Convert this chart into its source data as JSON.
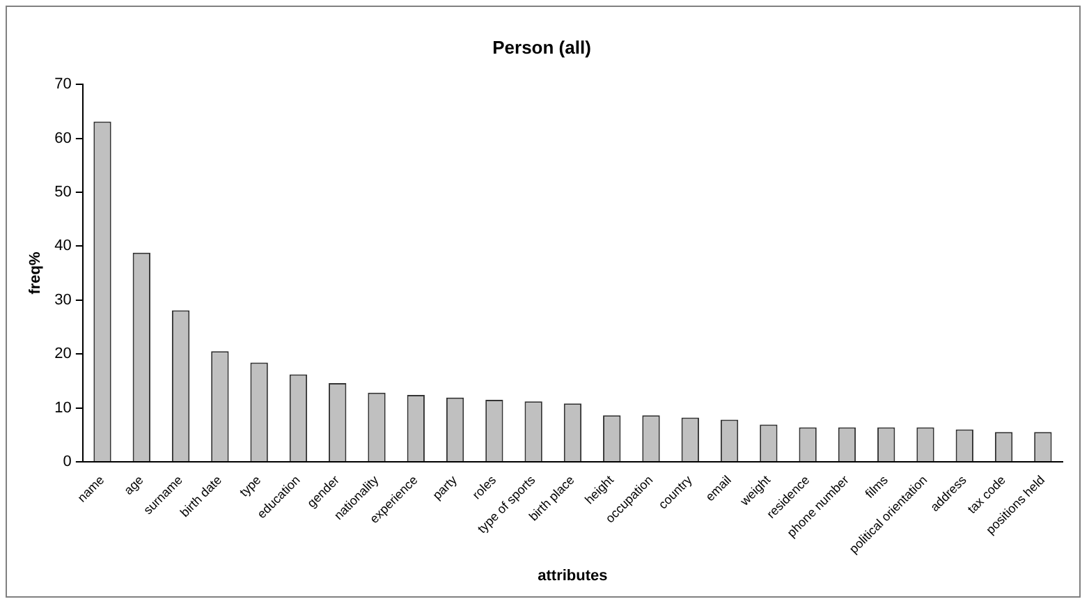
{
  "chart_data": {
    "type": "bar",
    "title": "Person (all)",
    "xlabel": "attributes",
    "ylabel": "freq%",
    "categories": [
      "name",
      "age",
      "surname",
      "birth date",
      "type",
      "education",
      "gender",
      "nationality",
      "experience",
      "party",
      "roles",
      "type of sports",
      "birth place",
      "height",
      "occupation",
      "country",
      "email",
      "weight",
      "residence",
      "phone number",
      "films",
      "political orientation",
      "address",
      "tax code",
      "positions held"
    ],
    "values": [
      63.1,
      38.8,
      28.1,
      20.5,
      18.4,
      16.2,
      14.6,
      12.8,
      12.4,
      11.9,
      11.5,
      11.2,
      10.8,
      8.6,
      8.6,
      8.2,
      7.8,
      6.9,
      6.4,
      6.4,
      6.4,
      6.4,
      6.0,
      5.5,
      5.5
    ],
    "color": "#c0c0c0",
    "ylim": [
      0,
      70
    ],
    "yticks": [
      0,
      10,
      20,
      30,
      40,
      50,
      60,
      70
    ],
    "grid": false,
    "legend": false
  }
}
